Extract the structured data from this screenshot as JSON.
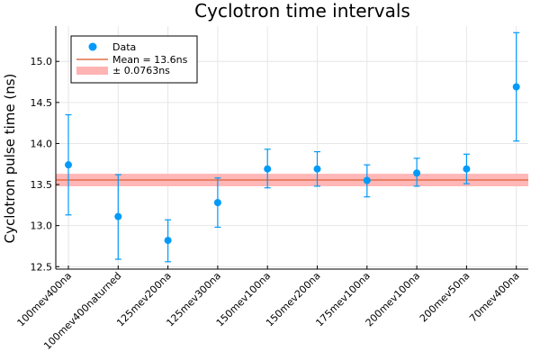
{
  "chart_data": {
    "type": "scatter",
    "title": "Cyclotron time intervals",
    "xlabel": "",
    "ylabel": "Cyclotron pulse time (ns)",
    "categories": [
      "100mev400na",
      "100mev400naturned",
      "125mev200na",
      "125mev300na",
      "150mev100na",
      "150mev200na",
      "175mev100na",
      "200mev100na",
      "200mev50na",
      "70mev400na"
    ],
    "series": [
      {
        "name": "Data",
        "values": [
          13.74,
          13.11,
          12.82,
          13.28,
          13.69,
          13.69,
          13.55,
          13.64,
          13.69,
          14.69
        ],
        "err_low": [
          0.61,
          0.52,
          0.26,
          0.3,
          0.23,
          0.21,
          0.2,
          0.16,
          0.18,
          0.66
        ],
        "err_high": [
          0.61,
          0.51,
          0.25,
          0.3,
          0.24,
          0.21,
          0.19,
          0.18,
          0.18,
          0.66
        ],
        "color": "#009af9"
      }
    ],
    "mean": 13.555,
    "band_halfwidth": 0.0763,
    "ylim": [
      12.47,
      15.43
    ],
    "yticks": [
      "12.5",
      "13.0",
      "13.5",
      "14.0",
      "14.5",
      "15.0"
    ],
    "grid": true,
    "legend": {
      "position": "top-left",
      "entries": [
        "Data",
        "Mean = 13.6ns",
        "± 0.0763ns"
      ]
    },
    "colors": {
      "data": "#009af9",
      "mean": "#e26f46",
      "band": "#ffb3b3"
    }
  }
}
